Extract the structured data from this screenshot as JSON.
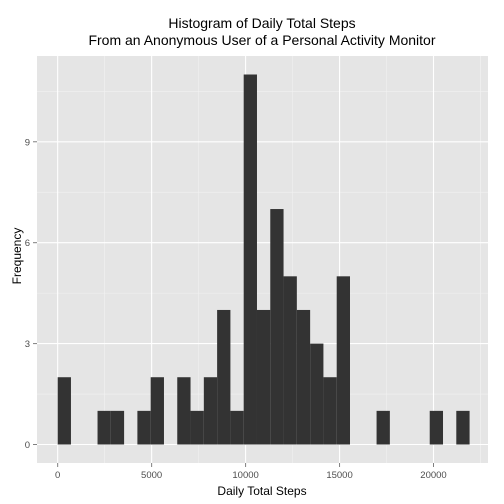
{
  "chart_data": {
    "type": "bar",
    "title_lines": [
      "Histogram of Daily Total Steps",
      "From an Anonymous User of a Personal Activity Monitor"
    ],
    "xlabel": "Daily Total Steps",
    "ylabel": "Frequency",
    "xlim": [
      -1100,
      22900
    ],
    "ylim": [
      -0.55,
      11.55
    ],
    "x_ticks": [
      0,
      5000,
      10000,
      15000,
      20000
    ],
    "x_tick_labels": [
      "0",
      "5000",
      "10000",
      "15000",
      "20000"
    ],
    "y_ticks": [
      0,
      3,
      6,
      9
    ],
    "y_tick_labels": [
      "0",
      "3",
      "6",
      "9"
    ],
    "bin_width": 707.1,
    "bin_centers": [
      353.5,
      2474.8,
      3181.9,
      4596.1,
      5303.2,
      6717.4,
      7424.5,
      8131.6,
      8838.7,
      9545.8,
      10252.9,
      10960.0,
      11667.1,
      12374.2,
      13081.3,
      13788.4,
      14495.5,
      15202.6,
      17323.9,
      20152.3,
      21566.5
    ],
    "frequencies": [
      2,
      1,
      1,
      1,
      2,
      2,
      1,
      2,
      4,
      1,
      11,
      4,
      7,
      5,
      4,
      3,
      2,
      5,
      1,
      1,
      1
    ],
    "colors": {
      "panel": "#e5e5e5",
      "grid_major": "#ffffff",
      "grid_minor": "#f2f2f2",
      "bar": "#333333",
      "tick_text": "#4d4d4d"
    },
    "grid": true,
    "legend": "none"
  }
}
